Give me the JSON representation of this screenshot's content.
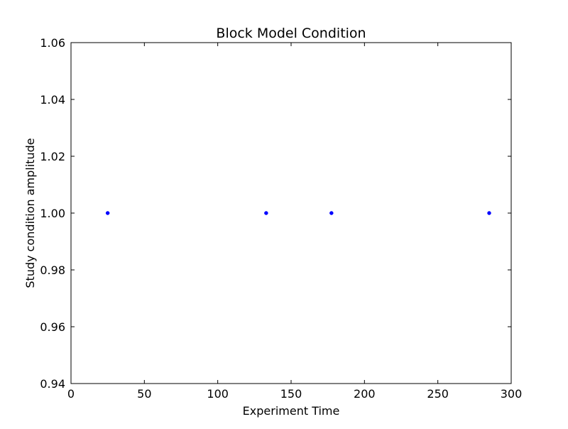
{
  "chart_data": {
    "type": "scatter",
    "title": "Block Model Condition",
    "xlabel": "Experiment Time",
    "ylabel": "Study condition amplitude",
    "xlim": [
      0,
      300
    ],
    "ylim": [
      0.94,
      1.06
    ],
    "x_ticks": [
      0,
      50,
      100,
      150,
      200,
      250,
      300
    ],
    "x_tick_labels": [
      "0",
      "50",
      "100",
      "150",
      "200",
      "250",
      "300"
    ],
    "y_ticks": [
      0.94,
      0.96,
      0.98,
      1.0,
      1.02,
      1.04,
      1.06
    ],
    "y_tick_labels": [
      "0.94",
      "0.96",
      "0.98",
      "1.00",
      "1.02",
      "1.04",
      "1.06"
    ],
    "grid": false,
    "marker_color": "#0000ff",
    "x": [
      25,
      133,
      177.5,
      285
    ],
    "y": [
      1.0,
      1.0,
      1.0,
      1.0
    ]
  }
}
